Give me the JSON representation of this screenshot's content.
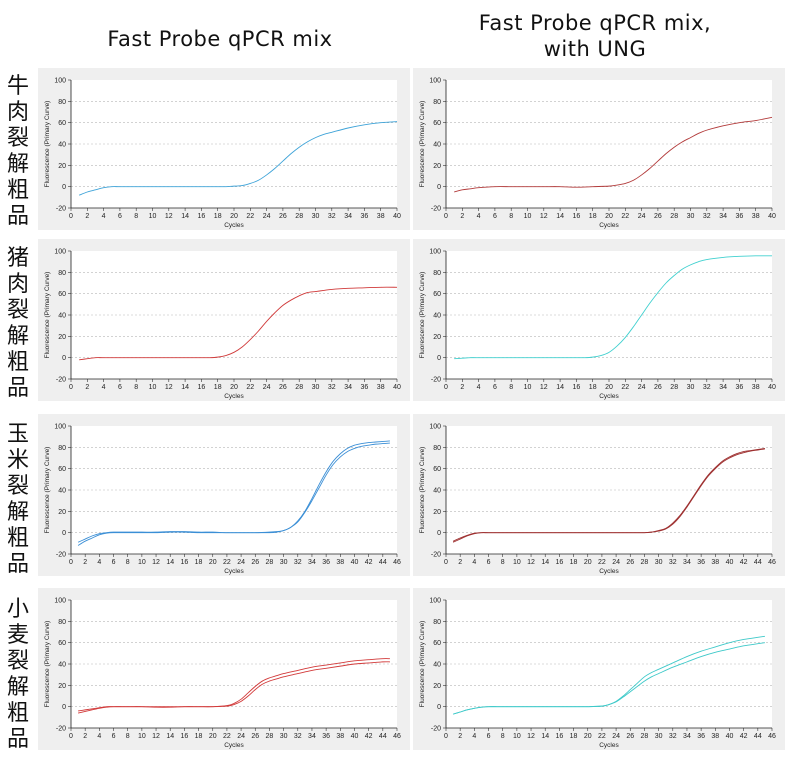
{
  "column_titles": [
    "Fast Probe qPCR mix",
    "Fast Probe qPCR mix,\nwith UNG"
  ],
  "row_labels": [
    "牛肉裂解粗品",
    "猪肉裂解粗品",
    "玉米裂解粗品",
    "小麦裂解粗品"
  ],
  "chart_data": [
    {
      "type": "line",
      "row": 0,
      "col": 0,
      "xlabel": "Cycles",
      "ylabel": "Fluorescence (Primary Curve)",
      "xlim": [
        0,
        40
      ],
      "ylim": [
        -20,
        100
      ],
      "xticks": [
        0,
        2,
        4,
        6,
        8,
        10,
        12,
        14,
        16,
        18,
        20,
        22,
        24,
        26,
        28,
        30,
        32,
        34,
        36,
        38,
        40
      ],
      "yticks": [
        -20,
        0,
        20,
        40,
        60,
        80,
        100
      ],
      "color": "#3ea3d8",
      "series": [
        {
          "x": [
            1,
            2,
            3,
            4,
            5,
            6,
            8,
            10,
            12,
            14,
            16,
            18,
            19,
            20,
            21,
            22,
            23,
            24,
            25,
            26,
            27,
            28,
            29,
            30,
            31,
            32,
            34,
            36,
            38,
            40
          ],
          "y": [
            -8,
            -5,
            -3,
            -1,
            0,
            0,
            0,
            0,
            0,
            0,
            0,
            0,
            0,
            0.5,
            1,
            3,
            6,
            11,
            17,
            24,
            31,
            37,
            42,
            46,
            49,
            51,
            55,
            58,
            60,
            61
          ]
        }
      ]
    },
    {
      "type": "line",
      "row": 0,
      "col": 1,
      "xlabel": "Cycles",
      "ylabel": "Fluorescence (Primary Curve)",
      "xlim": [
        0,
        40
      ],
      "ylim": [
        -20,
        100
      ],
      "xticks": [
        0,
        2,
        4,
        6,
        8,
        10,
        12,
        14,
        16,
        18,
        20,
        22,
        24,
        26,
        28,
        30,
        32,
        34,
        36,
        38,
        40
      ],
      "yticks": [
        -20,
        0,
        20,
        40,
        60,
        80,
        100
      ],
      "color": "#b23a3a",
      "series": [
        {
          "x": [
            1,
            2,
            3,
            4,
            6,
            8,
            10,
            12,
            14,
            16,
            18,
            20,
            21,
            22,
            23,
            24,
            25,
            26,
            27,
            28,
            29,
            30,
            31,
            32,
            34,
            36,
            38,
            40
          ],
          "y": [
            -5,
            -3,
            -2,
            -1,
            0,
            0,
            0,
            0,
            0,
            -0.5,
            0,
            0.5,
            1.5,
            3,
            6,
            11,
            17,
            24,
            31,
            37,
            42,
            46,
            50,
            53,
            57,
            60,
            62,
            65
          ]
        }
      ]
    },
    {
      "type": "line",
      "row": 1,
      "col": 0,
      "xlabel": "Cycles",
      "ylabel": "Fluorescence (Primary Curve)",
      "xlim": [
        0,
        40
      ],
      "ylim": [
        -20,
        100
      ],
      "xticks": [
        0,
        2,
        4,
        6,
        8,
        10,
        12,
        14,
        16,
        18,
        20,
        22,
        24,
        26,
        28,
        30,
        32,
        34,
        36,
        38,
        40
      ],
      "yticks": [
        -20,
        0,
        20,
        40,
        60,
        80,
        100
      ],
      "color": "#d03a3a",
      "series": [
        {
          "x": [
            1,
            2,
            3,
            4,
            6,
            8,
            10,
            12,
            14,
            16,
            17,
            18,
            19,
            20,
            21,
            22,
            23,
            24,
            25,
            26,
            27,
            28,
            29,
            30,
            31,
            32,
            34,
            36,
            38,
            40
          ],
          "y": [
            -2,
            -1,
            0,
            0,
            0,
            0,
            0,
            0,
            0,
            0,
            0,
            0.5,
            2,
            5,
            10,
            17,
            25,
            34,
            42,
            49,
            54,
            58,
            61,
            62,
            63,
            64,
            65,
            65.5,
            66,
            66
          ]
        }
      ]
    },
    {
      "type": "line",
      "row": 1,
      "col": 1,
      "xlabel": "Cycles",
      "ylabel": "Fluorescence (Primary Curve)",
      "xlim": [
        0,
        40
      ],
      "ylim": [
        -20,
        100
      ],
      "xticks": [
        0,
        2,
        4,
        6,
        8,
        10,
        12,
        14,
        16,
        18,
        20,
        22,
        24,
        26,
        28,
        30,
        32,
        34,
        36,
        38,
        40
      ],
      "yticks": [
        -20,
        0,
        20,
        40,
        60,
        80,
        100
      ],
      "color": "#40d0cf",
      "series": [
        {
          "x": [
            1,
            2,
            3,
            4,
            6,
            8,
            10,
            12,
            14,
            16,
            17,
            18,
            19,
            20,
            21,
            22,
            23,
            24,
            25,
            26,
            27,
            28,
            29,
            30,
            31,
            32,
            34,
            36,
            38,
            40
          ],
          "y": [
            -1,
            -0.5,
            0,
            0,
            0,
            0,
            0,
            0,
            0,
            0,
            0,
            0.5,
            2,
            5,
            11,
            19,
            29,
            40,
            51,
            61,
            70,
            77,
            83,
            87,
            90,
            92,
            94,
            95,
            95.5,
            95.5
          ]
        }
      ]
    },
    {
      "type": "line",
      "row": 2,
      "col": 0,
      "xlabel": "Cycles",
      "ylabel": "Fluorescence (Primary Curve)",
      "xlim": [
        0,
        46
      ],
      "ylim": [
        -20,
        100
      ],
      "xticks": [
        0,
        2,
        4,
        6,
        8,
        10,
        12,
        14,
        16,
        18,
        20,
        22,
        24,
        26,
        28,
        30,
        32,
        34,
        36,
        38,
        40,
        42,
        44,
        46
      ],
      "yticks": [
        -20,
        0,
        20,
        40,
        60,
        80,
        100
      ],
      "color": "#3b8fd6",
      "series": [
        {
          "x": [
            1,
            2,
            3,
            4,
            5,
            6,
            8,
            10,
            12,
            14,
            16,
            18,
            20,
            22,
            24,
            26,
            28,
            29,
            30,
            31,
            32,
            33,
            34,
            35,
            36,
            37,
            38,
            39,
            40,
            41,
            42,
            43,
            44,
            45
          ],
          "y": [
            -12,
            -8,
            -5,
            -2,
            -0.5,
            0,
            0,
            0,
            0,
            0.5,
            0.5,
            0,
            0,
            0,
            0,
            0,
            0,
            0.5,
            2,
            5,
            11,
            20,
            32,
            45,
            57,
            67,
            74,
            79,
            82,
            83.5,
            84.5,
            85,
            85.5,
            86
          ]
        },
        {
          "x": [
            1,
            2,
            3,
            4,
            5,
            6,
            8,
            10,
            12,
            14,
            16,
            18,
            20,
            22,
            24,
            26,
            28,
            29,
            30,
            31,
            32,
            33,
            34,
            35,
            36,
            37,
            38,
            39,
            40,
            41,
            42,
            43,
            44,
            45
          ],
          "y": [
            -9,
            -6,
            -3,
            -1,
            0,
            0.5,
            0.5,
            0.5,
            0.5,
            1,
            1,
            0.5,
            0.5,
            0,
            0,
            0,
            0.5,
            1,
            2,
            5,
            10,
            19,
            30,
            42,
            54,
            64,
            71,
            76,
            79,
            81,
            82,
            83,
            83.5,
            84
          ]
        }
      ]
    },
    {
      "type": "line",
      "row": 2,
      "col": 1,
      "xlabel": "Cycles",
      "ylabel": "Fluorescence (Primary Curve)",
      "xlim": [
        0,
        46
      ],
      "ylim": [
        -20,
        100
      ],
      "xticks": [
        0,
        2,
        4,
        6,
        8,
        10,
        12,
        14,
        16,
        18,
        20,
        22,
        24,
        26,
        28,
        30,
        32,
        34,
        36,
        38,
        40,
        42,
        44,
        46
      ],
      "yticks": [
        -20,
        0,
        20,
        40,
        60,
        80,
        100
      ],
      "color": "#9e3030",
      "series": [
        {
          "x": [
            1,
            2,
            3,
            4,
            5,
            6,
            8,
            10,
            12,
            14,
            16,
            18,
            20,
            22,
            24,
            26,
            28,
            29,
            30,
            31,
            32,
            33,
            34,
            35,
            36,
            37,
            38,
            39,
            40,
            41,
            42,
            43,
            44,
            45
          ],
          "y": [
            -9,
            -6,
            -3,
            -1,
            0,
            0,
            0,
            0,
            0,
            0,
            0,
            0,
            0,
            0,
            0,
            0,
            0,
            0.5,
            2,
            4,
            9,
            16,
            25,
            35,
            45,
            54,
            61,
            67,
            71,
            74,
            76,
            77,
            78,
            79
          ]
        },
        {
          "x": [
            1,
            2,
            3,
            4,
            5,
            6,
            8,
            10,
            12,
            14,
            16,
            18,
            20,
            22,
            24,
            26,
            28,
            29,
            30,
            31,
            32,
            33,
            34,
            35,
            36,
            37,
            38,
            39,
            40,
            41,
            42,
            43,
            44,
            45
          ],
          "y": [
            -8,
            -5,
            -2.5,
            -0.5,
            0,
            0,
            0,
            0,
            0,
            0,
            0,
            0,
            0,
            0,
            0,
            0,
            0,
            0.5,
            1.5,
            3.5,
            8,
            15,
            24,
            34,
            44,
            53,
            60,
            66,
            70,
            73,
            75,
            76.5,
            77.5,
            78.5
          ]
        }
      ]
    },
    {
      "type": "line",
      "row": 3,
      "col": 0,
      "xlabel": "Cycles",
      "ylabel": "Fluorescence (Primary Curve)",
      "xlim": [
        0,
        46
      ],
      "ylim": [
        -20,
        100
      ],
      "xticks": [
        0,
        2,
        4,
        6,
        8,
        10,
        12,
        14,
        16,
        18,
        20,
        22,
        24,
        26,
        28,
        30,
        32,
        34,
        36,
        38,
        40,
        42,
        44,
        46
      ],
      "yticks": [
        -20,
        0,
        20,
        40,
        60,
        80,
        100
      ],
      "color": "#d23a3a",
      "series": [
        {
          "x": [
            1,
            2,
            3,
            4,
            5,
            6,
            8,
            10,
            12,
            14,
            16,
            18,
            20,
            22,
            23,
            24,
            25,
            26,
            27,
            28,
            29,
            30,
            32,
            34,
            36,
            38,
            40,
            42,
            44,
            45
          ],
          "y": [
            -4,
            -3,
            -2,
            -1,
            0,
            0,
            0,
            0,
            -0.5,
            -0.5,
            0,
            0,
            0,
            1,
            3,
            7,
            13,
            19,
            24,
            27,
            29,
            31,
            34,
            37,
            39,
            41,
            43,
            44,
            45,
            45
          ]
        },
        {
          "x": [
            1,
            2,
            3,
            4,
            5,
            6,
            8,
            10,
            12,
            14,
            16,
            18,
            20,
            22,
            23,
            24,
            25,
            26,
            27,
            28,
            29,
            30,
            32,
            34,
            36,
            38,
            40,
            42,
            44,
            45
          ],
          "y": [
            -6,
            -4.5,
            -3,
            -1.5,
            -0.5,
            0,
            0,
            0,
            0,
            0,
            0,
            0,
            0,
            0.5,
            2,
            5,
            10,
            16,
            21,
            24,
            26,
            28,
            31,
            34,
            36,
            38,
            40,
            41,
            42,
            42
          ]
        }
      ]
    },
    {
      "type": "line",
      "row": 3,
      "col": 1,
      "xlabel": "Cycles",
      "ylabel": "Fluorescence (Primary Curve)",
      "xlim": [
        0,
        46
      ],
      "ylim": [
        -20,
        100
      ],
      "xticks": [
        0,
        2,
        4,
        6,
        8,
        10,
        12,
        14,
        16,
        18,
        20,
        22,
        24,
        26,
        28,
        30,
        32,
        34,
        36,
        38,
        40,
        42,
        44,
        46
      ],
      "yticks": [
        -20,
        0,
        20,
        40,
        60,
        80,
        100
      ],
      "color": "#3ec9c9",
      "series": [
        {
          "x": [
            1,
            2,
            3,
            4,
            5,
            6,
            8,
            10,
            12,
            14,
            16,
            18,
            20,
            22,
            23,
            24,
            25,
            26,
            27,
            28,
            29,
            30,
            32,
            34,
            36,
            38,
            40,
            42,
            44,
            45
          ],
          "y": [
            -7,
            -5,
            -3,
            -1.5,
            -0.5,
            0,
            0,
            0,
            0,
            0,
            0,
            0,
            0,
            0.5,
            2,
            5,
            10,
            16,
            22,
            28,
            32,
            35,
            41,
            47,
            52,
            56,
            60,
            63,
            65,
            66
          ]
        },
        {
          "x": [
            1,
            2,
            3,
            4,
            5,
            6,
            8,
            10,
            12,
            14,
            16,
            18,
            20,
            22,
            23,
            24,
            25,
            26,
            27,
            28,
            29,
            30,
            32,
            34,
            36,
            38,
            40,
            42,
            44,
            45
          ],
          "y": [
            -7,
            -5,
            -3,
            -1.5,
            -0.5,
            0,
            0,
            0,
            0,
            0,
            0,
            0,
            0,
            0.5,
            2,
            4.5,
            9,
            14,
            19,
            24,
            28,
            31,
            37,
            42,
            47,
            51,
            54,
            57,
            59,
            60
          ]
        }
      ]
    }
  ]
}
